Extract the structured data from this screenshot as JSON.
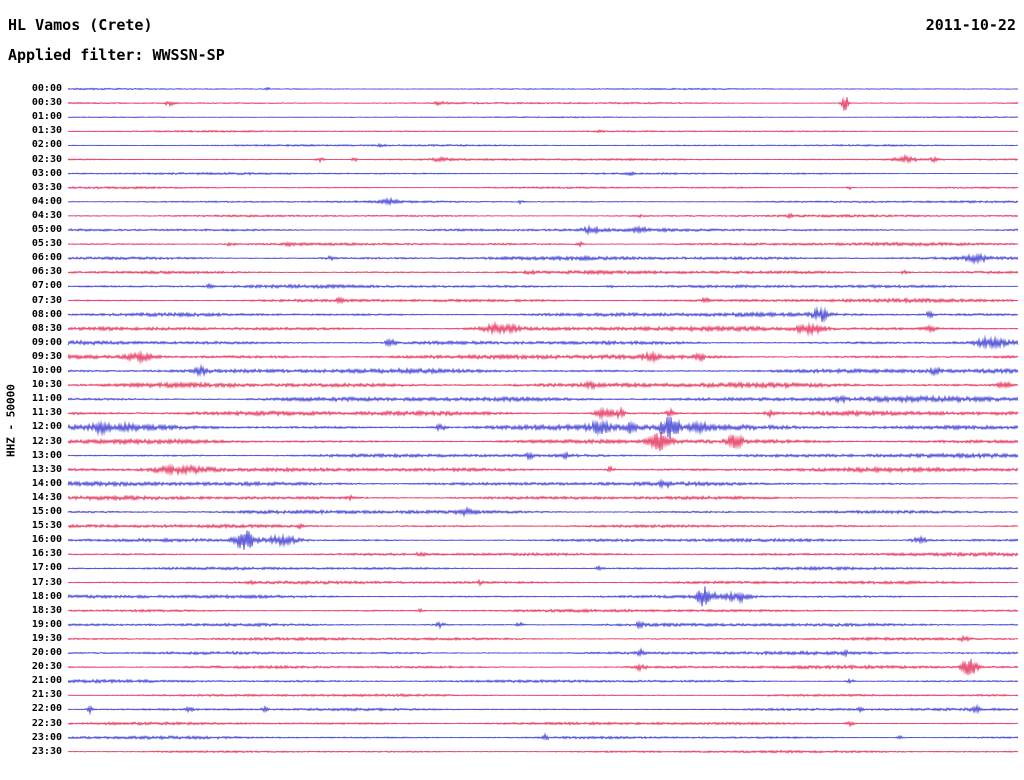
{
  "header": {
    "station": "HL Vamos (Crete)",
    "date": "2011-10-22",
    "filter_label": "Applied filter: WWSSN-SP"
  },
  "y_axis_label": "HHZ - 50000",
  "colors": {
    "background": "#ffffff",
    "text": "#000000",
    "blue": "#2020cc",
    "red": "#e01243"
  },
  "chart_data": {
    "type": "seismogram-helicorder",
    "title": "HL Vamos (Crete)",
    "date": "2011-10-22",
    "filter": "WWSSN-SP",
    "channel": "HHZ",
    "scale": 50000,
    "minutes_per_row": 30,
    "row_count": 48,
    "legend_position": "none",
    "grid": false,
    "note": "Alternating blue/red 30-minute traces. 'noise' = background amplitude (px half-height); events: x = fraction along row, a = peak amplitude px, w = gaussian half-width px.",
    "rows": [
      {
        "time": "00:00",
        "color": "blue",
        "noise": 0.7,
        "events": [
          {
            "x": 0.21,
            "a": 1.5,
            "w": 2
          }
        ]
      },
      {
        "time": "00:30",
        "color": "red",
        "noise": 0.8,
        "events": [
          {
            "x": 0.107,
            "a": 2.2,
            "w": 4
          },
          {
            "x": 0.392,
            "a": 1.8,
            "w": 4
          },
          {
            "x": 0.818,
            "a": 8,
            "w": 2.5
          }
        ]
      },
      {
        "time": "01:00",
        "color": "blue",
        "noise": 0.6,
        "events": []
      },
      {
        "time": "01:30",
        "color": "red",
        "noise": 0.7,
        "events": [
          {
            "x": 0.56,
            "a": 1.2,
            "w": 3
          }
        ]
      },
      {
        "time": "02:00",
        "color": "blue",
        "noise": 0.8,
        "events": [
          {
            "x": 0.33,
            "a": 1.2,
            "w": 3
          }
        ]
      },
      {
        "time": "02:30",
        "color": "red",
        "noise": 0.9,
        "events": [
          {
            "x": 0.265,
            "a": 2.2,
            "w": 3
          },
          {
            "x": 0.302,
            "a": 2.6,
            "w": 2
          },
          {
            "x": 0.392,
            "a": 1.8,
            "w": 5
          },
          {
            "x": 0.881,
            "a": 3.5,
            "w": 8
          },
          {
            "x": 0.913,
            "a": 2.5,
            "w": 4
          }
        ]
      },
      {
        "time": "03:00",
        "color": "blue",
        "noise": 0.9,
        "events": [
          {
            "x": 0.592,
            "a": 2.2,
            "w": 2
          }
        ]
      },
      {
        "time": "03:30",
        "color": "red",
        "noise": 0.9,
        "events": [
          {
            "x": 0.823,
            "a": 1.8,
            "w": 2
          }
        ]
      },
      {
        "time": "04:00",
        "color": "blue",
        "noise": 1.0,
        "events": [
          {
            "x": 0.339,
            "a": 2.2,
            "w": 6
          },
          {
            "x": 0.476,
            "a": 1.8,
            "w": 2
          }
        ]
      },
      {
        "time": "04:30",
        "color": "red",
        "noise": 1.0,
        "events": [
          {
            "x": 0.6,
            "a": 1.5,
            "w": 3
          },
          {
            "x": 0.76,
            "a": 1.8,
            "w": 2
          }
        ]
      },
      {
        "time": "05:00",
        "color": "blue",
        "noise": 1.3,
        "events": [
          {
            "x": 0.549,
            "a": 2.8,
            "w": 6
          },
          {
            "x": 0.602,
            "a": 2.2,
            "w": 4
          }
        ]
      },
      {
        "time": "05:30",
        "color": "red",
        "noise": 1.3,
        "events": [
          {
            "x": 0.171,
            "a": 1.8,
            "w": 3
          },
          {
            "x": 0.234,
            "a": 1.8,
            "w": 3
          },
          {
            "x": 0.539,
            "a": 2.2,
            "w": 3
          }
        ]
      },
      {
        "time": "06:00",
        "color": "blue",
        "noise": 1.6,
        "events": [
          {
            "x": 0.276,
            "a": 1.8,
            "w": 4
          },
          {
            "x": 0.955,
            "a": 3.5,
            "w": 8
          }
        ]
      },
      {
        "time": "06:30",
        "color": "red",
        "noise": 1.5,
        "events": [
          {
            "x": 0.486,
            "a": 2.2,
            "w": 4
          },
          {
            "x": 0.881,
            "a": 1.8,
            "w": 3
          }
        ]
      },
      {
        "time": "07:00",
        "color": "blue",
        "noise": 1.4,
        "events": [
          {
            "x": 0.149,
            "a": 1.8,
            "w": 3
          },
          {
            "x": 0.57,
            "a": 1.5,
            "w": 3
          }
        ]
      },
      {
        "time": "07:30",
        "color": "red",
        "noise": 1.5,
        "events": [
          {
            "x": 0.286,
            "a": 1.8,
            "w": 3
          },
          {
            "x": 0.671,
            "a": 1.8,
            "w": 3
          }
        ]
      },
      {
        "time": "08:00",
        "color": "blue",
        "noise": 1.7,
        "events": [
          {
            "x": 0.792,
            "a": 6,
            "w": 5
          },
          {
            "x": 0.907,
            "a": 2.5,
            "w": 3
          }
        ]
      },
      {
        "time": "08:30",
        "color": "red",
        "noise": 1.8,
        "events": [
          {
            "x": 0.455,
            "a": 4.5,
            "w": 12
          },
          {
            "x": 0.781,
            "a": 4.5,
            "w": 10
          },
          {
            "x": 0.907,
            "a": 2.8,
            "w": 4
          }
        ]
      },
      {
        "time": "09:00",
        "color": "blue",
        "noise": 1.9,
        "events": [
          {
            "x": 0.34,
            "a": 2.5,
            "w": 4
          },
          {
            "x": 0.971,
            "a": 4.5,
            "w": 10
          }
        ]
      },
      {
        "time": "09:30",
        "color": "red",
        "noise": 1.9,
        "events": [
          {
            "x": 0.076,
            "a": 3.5,
            "w": 10
          },
          {
            "x": 0.613,
            "a": 2.8,
            "w": 5
          },
          {
            "x": 0.665,
            "a": 2.5,
            "w": 3
          }
        ]
      },
      {
        "time": "10:00",
        "color": "blue",
        "noise": 2.1,
        "events": [
          {
            "x": 0.139,
            "a": 4.5,
            "w": 4
          },
          {
            "x": 0.913,
            "a": 2.8,
            "w": 3
          }
        ]
      },
      {
        "time": "10:30",
        "color": "red",
        "noise": 2.1,
        "events": [
          {
            "x": 0.55,
            "a": 2.5,
            "w": 3
          },
          {
            "x": 0.986,
            "a": 3.5,
            "w": 5
          }
        ]
      },
      {
        "time": "11:00",
        "color": "blue",
        "noise": 2.2,
        "events": [
          {
            "x": 0.813,
            "a": 2.8,
            "w": 3
          }
        ]
      },
      {
        "time": "11:30",
        "color": "red",
        "noise": 2.1,
        "events": [
          {
            "x": 0.565,
            "a": 5.5,
            "w": 6
          },
          {
            "x": 0.581,
            "a": 4.5,
            "w": 3
          },
          {
            "x": 0.634,
            "a": 3.5,
            "w": 3
          },
          {
            "x": 0.739,
            "a": 2.8,
            "w": 3
          }
        ]
      },
      {
        "time": "12:00",
        "color": "blue",
        "noise": 2.5,
        "events": [
          {
            "x": 0.034,
            "a": 3.5,
            "w": 6
          },
          {
            "x": 0.065,
            "a": 3.5,
            "w": 4
          },
          {
            "x": 0.392,
            "a": 2.8,
            "w": 4
          },
          {
            "x": 0.56,
            "a": 4.5,
            "w": 8
          },
          {
            "x": 0.592,
            "a": 4.5,
            "w": 4
          },
          {
            "x": 0.634,
            "a": 11,
            "w": 6
          },
          {
            "x": 0.665,
            "a": 4,
            "w": 6
          }
        ]
      },
      {
        "time": "12:30",
        "color": "red",
        "noise": 2.0,
        "events": [
          {
            "x": 0.623,
            "a": 8,
            "w": 7
          },
          {
            "x": 0.702,
            "a": 6.5,
            "w": 5
          }
        ]
      },
      {
        "time": "13:00",
        "color": "blue",
        "noise": 1.7,
        "events": [
          {
            "x": 0.486,
            "a": 3.5,
            "w": 2
          },
          {
            "x": 0.523,
            "a": 2.8,
            "w": 2
          }
        ]
      },
      {
        "time": "13:30",
        "color": "red",
        "noise": 1.9,
        "events": [
          {
            "x": 0.118,
            "a": 4,
            "w": 22
          },
          {
            "x": 0.571,
            "a": 2.8,
            "w": 3
          }
        ]
      },
      {
        "time": "14:00",
        "color": "blue",
        "noise": 1.8,
        "events": [
          {
            "x": 0.628,
            "a": 2.8,
            "w": 3
          }
        ]
      },
      {
        "time": "14:30",
        "color": "red",
        "noise": 1.6,
        "events": [
          {
            "x": 0.297,
            "a": 1.8,
            "w": 2
          }
        ]
      },
      {
        "time": "15:00",
        "color": "blue",
        "noise": 1.5,
        "events": [
          {
            "x": 0.418,
            "a": 2.8,
            "w": 5
          }
        ]
      },
      {
        "time": "15:30",
        "color": "red",
        "noise": 1.4,
        "events": [
          {
            "x": 0.244,
            "a": 1.8,
            "w": 2
          }
        ]
      },
      {
        "time": "16:00",
        "color": "blue",
        "noise": 1.5,
        "events": [
          {
            "x": 0.186,
            "a": 10,
            "w": 7
          },
          {
            "x": 0.225,
            "a": 4.5,
            "w": 12
          },
          {
            "x": 0.897,
            "a": 2.8,
            "w": 6
          }
        ]
      },
      {
        "time": "16:30",
        "color": "red",
        "noise": 1.4,
        "events": [
          {
            "x": 0.371,
            "a": 1.8,
            "w": 3
          }
        ]
      },
      {
        "time": "17:00",
        "color": "blue",
        "noise": 1.3,
        "events": [
          {
            "x": 0.56,
            "a": 1.8,
            "w": 3
          }
        ]
      },
      {
        "time": "17:30",
        "color": "red",
        "noise": 1.3,
        "events": [
          {
            "x": 0.192,
            "a": 1.8,
            "w": 2
          },
          {
            "x": 0.434,
            "a": 1.8,
            "w": 2
          }
        ]
      },
      {
        "time": "18:00",
        "color": "blue",
        "noise": 1.4,
        "events": [
          {
            "x": 0.671,
            "a": 10,
            "w": 6
          },
          {
            "x": 0.705,
            "a": 4.5,
            "w": 9
          }
        ]
      },
      {
        "time": "18:30",
        "color": "red",
        "noise": 1.2,
        "events": [
          {
            "x": 0.371,
            "a": 1.5,
            "w": 2
          }
        ]
      },
      {
        "time": "19:00",
        "color": "blue",
        "noise": 1.4,
        "events": [
          {
            "x": 0.392,
            "a": 2.8,
            "w": 3
          },
          {
            "x": 0.476,
            "a": 2.8,
            "w": 3
          },
          {
            "x": 0.602,
            "a": 2.2,
            "w": 3
          }
        ]
      },
      {
        "time": "19:30",
        "color": "red",
        "noise": 1.3,
        "events": [
          {
            "x": 0.944,
            "a": 2.2,
            "w": 3
          }
        ]
      },
      {
        "time": "20:00",
        "color": "blue",
        "noise": 1.4,
        "events": [
          {
            "x": 0.602,
            "a": 2.8,
            "w": 3
          },
          {
            "x": 0.818,
            "a": 2.8,
            "w": 2
          }
        ]
      },
      {
        "time": "20:30",
        "color": "red",
        "noise": 1.4,
        "events": [
          {
            "x": 0.602,
            "a": 2.8,
            "w": 4
          },
          {
            "x": 0.949,
            "a": 9,
            "w": 5
          }
        ]
      },
      {
        "time": "21:00",
        "color": "blue",
        "noise": 1.3,
        "events": [
          {
            "x": 0.823,
            "a": 1.8,
            "w": 3
          }
        ]
      },
      {
        "time": "21:30",
        "color": "red",
        "noise": 1.1,
        "events": []
      },
      {
        "time": "22:00",
        "color": "blue",
        "noise": 1.2,
        "events": [
          {
            "x": 0.023,
            "a": 4.5,
            "w": 2
          },
          {
            "x": 0.128,
            "a": 2.8,
            "w": 2
          },
          {
            "x": 0.207,
            "a": 2.2,
            "w": 2
          },
          {
            "x": 0.834,
            "a": 2.2,
            "w": 2
          },
          {
            "x": 0.955,
            "a": 2.8,
            "w": 3
          }
        ]
      },
      {
        "time": "22:30",
        "color": "red",
        "noise": 1.2,
        "events": [
          {
            "x": 0.823,
            "a": 2.8,
            "w": 3
          }
        ]
      },
      {
        "time": "23:00",
        "color": "blue",
        "noise": 1.2,
        "events": [
          {
            "x": 0.502,
            "a": 3.5,
            "w": 2
          },
          {
            "x": 0.876,
            "a": 1.8,
            "w": 2
          }
        ]
      },
      {
        "time": "23:30",
        "color": "red",
        "noise": 1.0,
        "events": []
      }
    ]
  }
}
